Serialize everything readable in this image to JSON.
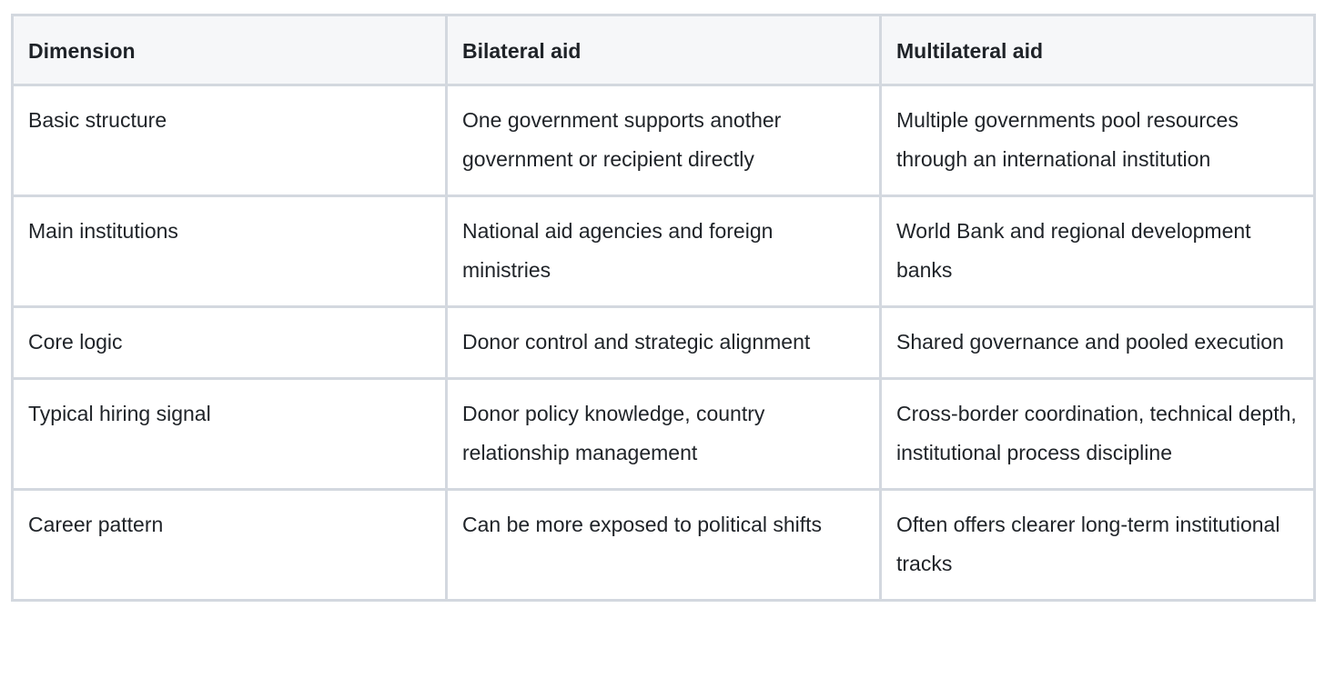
{
  "table": {
    "header": [
      "Dimension",
      "Bilateral aid",
      "Multilateral aid"
    ],
    "rows": [
      [
        "Basic structure",
        "One government supports another government or recipient directly",
        "Multiple governments pool resources through an international institution"
      ],
      [
        "Main institutions",
        "National aid agencies and foreign ministries",
        "World Bank and regional development banks"
      ],
      [
        "Core logic",
        "Donor control and strategic alignment",
        "Shared governance and pooled execution"
      ],
      [
        "Typical hiring signal",
        "Donor policy knowledge, country relationship management",
        "Cross-border coordination, technical depth, institutional process discipline"
      ],
      [
        "Career pattern",
        "Can be more exposed to political shifts",
        "Often offers clearer long-term institutional tracks"
      ]
    ]
  }
}
